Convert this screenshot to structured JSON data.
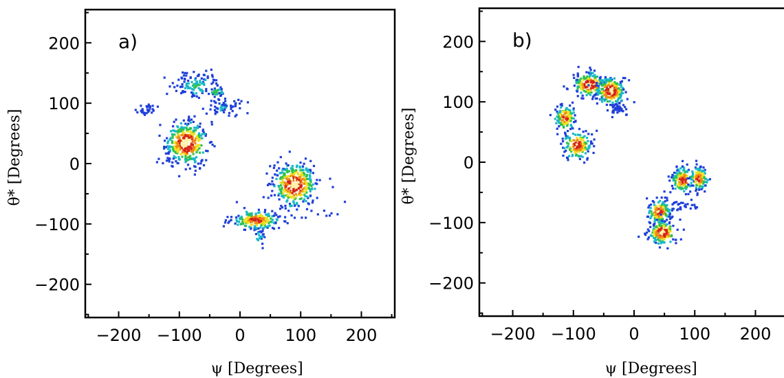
{
  "chart_data": [
    {
      "type": "heatmap",
      "panel_label": "a)",
      "xlabel": "ψ [Degrees]",
      "ylabel": "θ* [Degrees]",
      "xlim": [
        -255,
        255
      ],
      "ylim": [
        -255,
        255
      ],
      "xticks": [
        -200,
        -100,
        0,
        100,
        200
      ],
      "yticks": [
        -200,
        -100,
        0,
        100,
        200
      ],
      "xtick_labels": [
        "−200",
        "−100",
        "0",
        "100",
        "200"
      ],
      "ytick_labels": [
        "−200",
        "−100",
        "0",
        "100",
        "200"
      ],
      "colormap": [
        "#1f3fd8",
        "#18b8c8",
        "#2fc24a",
        "#f0e020",
        "#ef8a18",
        "#d42418",
        "#fff2a8"
      ],
      "clusters": [
        {
          "x": -90,
          "y": 35,
          "sx": 18,
          "sy": 18,
          "peak": 0.95,
          "n": 380
        },
        {
          "x": 88,
          "y": -33,
          "sx": 18,
          "sy": 18,
          "peak": 0.95,
          "n": 360
        },
        {
          "x": 25,
          "y": -92,
          "sx": 20,
          "sy": 8,
          "peak": 0.8,
          "n": 220
        },
        {
          "x": -75,
          "y": 130,
          "sx": 18,
          "sy": 10,
          "peak": 0.3,
          "n": 120
        },
        {
          "x": -30,
          "y": 95,
          "sx": 15,
          "sy": 7,
          "peak": 0.15,
          "n": 60
        },
        {
          "x": -155,
          "y": 92,
          "sx": 8,
          "sy": 5,
          "peak": 0.1,
          "n": 30
        },
        {
          "x": -40,
          "y": 120,
          "sx": 6,
          "sy": 4,
          "peak": 0.45,
          "n": 30
        },
        {
          "x": 30,
          "y": -120,
          "sx": 6,
          "sy": 6,
          "peak": 0.25,
          "n": 20
        },
        {
          "x": 140,
          "y": -82,
          "sx": 12,
          "sy": 3,
          "peak": 0.05,
          "n": 6
        }
      ]
    },
    {
      "type": "heatmap",
      "panel_label": "b)",
      "xlabel": "ψ [Degrees]",
      "ylabel": "θ* [Degrees]",
      "xlim": [
        -255,
        255
      ],
      "ylim": [
        -255,
        255
      ],
      "xticks": [
        -200,
        -100,
        0,
        100,
        200
      ],
      "yticks": [
        -200,
        -100,
        0,
        100,
        200
      ],
      "xtick_labels": [
        "−200",
        "−100",
        "0",
        "100",
        "200"
      ],
      "ytick_labels": [
        "−200",
        "−100",
        "0",
        "100",
        "200"
      ],
      "colormap": [
        "#1f3fd8",
        "#18b8c8",
        "#2fc24a",
        "#f0e020",
        "#ef8a18",
        "#d42418",
        "#fff2a8"
      ],
      "clusters": [
        {
          "x": -75,
          "y": 130,
          "sx": 14,
          "sy": 10,
          "peak": 0.95,
          "n": 200
        },
        {
          "x": -40,
          "y": 120,
          "sx": 12,
          "sy": 12,
          "peak": 0.95,
          "n": 220
        },
        {
          "x": -115,
          "y": 75,
          "sx": 9,
          "sy": 12,
          "peak": 0.75,
          "n": 120
        },
        {
          "x": -95,
          "y": 30,
          "sx": 12,
          "sy": 12,
          "peak": 0.85,
          "n": 150
        },
        {
          "x": -30,
          "y": 90,
          "sx": 7,
          "sy": 5,
          "peak": 0.1,
          "n": 50
        },
        {
          "x": 78,
          "y": -28,
          "sx": 10,
          "sy": 11,
          "peak": 0.8,
          "n": 130
        },
        {
          "x": 105,
          "y": -25,
          "sx": 8,
          "sy": 10,
          "peak": 0.8,
          "n": 110
        },
        {
          "x": 40,
          "y": -80,
          "sx": 10,
          "sy": 10,
          "peak": 0.85,
          "n": 150
        },
        {
          "x": 45,
          "y": -115,
          "sx": 12,
          "sy": 10,
          "peak": 0.95,
          "n": 170
        },
        {
          "x": 80,
          "y": -70,
          "sx": 15,
          "sy": 6,
          "peak": 0.05,
          "n": 25
        }
      ]
    }
  ]
}
